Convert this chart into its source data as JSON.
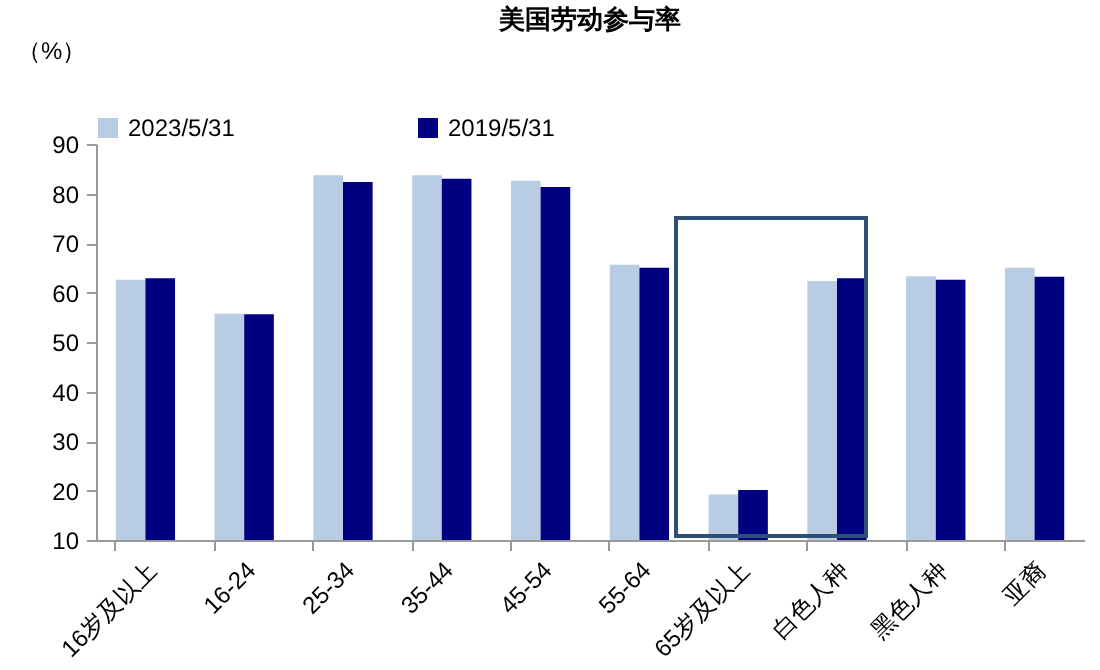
{
  "chart_data": {
    "type": "bar",
    "title": "美国劳动参与率",
    "ylabel": "（%）",
    "categories": [
      "16岁及以上",
      "16-24",
      "25-34",
      "35-44",
      "45-54",
      "55-64",
      "65岁及以上",
      "白色人种",
      "黑色人种",
      "亚裔"
    ],
    "series": [
      {
        "name": "2023/5/31",
        "color": "#b8cce4",
        "values": [
          62.6,
          55.7,
          83.7,
          83.7,
          82.6,
          65.6,
          19.2,
          62.3,
          63.3,
          65.0
        ]
      },
      {
        "name": "2019/5/31",
        "color": "#000080",
        "values": [
          62.9,
          55.6,
          82.3,
          83.0,
          81.3,
          65.0,
          20.1,
          62.9,
          62.6,
          63.2
        ]
      }
    ],
    "ylim": [
      10,
      90
    ],
    "yticks": [
      10,
      20,
      30,
      40,
      50,
      60,
      70,
      80,
      90
    ],
    "grid": false,
    "legend": "top"
  }
}
